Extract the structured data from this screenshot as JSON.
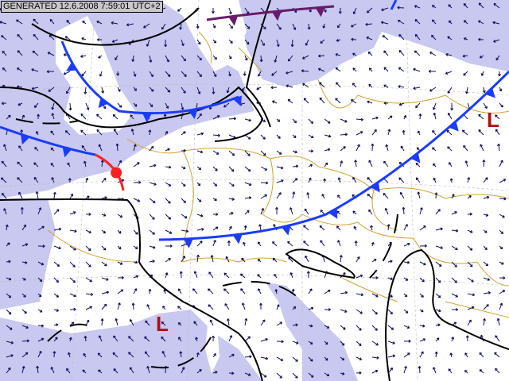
{
  "header": {
    "generated_label": "GENERATED 12.6.2008 7:59:01 UTC+2"
  },
  "pressure_centers": [
    {
      "label": "L",
      "type": "low"
    },
    {
      "label": "L",
      "type": "low"
    }
  ],
  "colors": {
    "sea": "#c8c8f0",
    "land": "#ffffff",
    "borders": "#d4a030",
    "cold_front": "#1a3cff",
    "warm_front": "#ff2020",
    "occluded_front": "#6a1a6a",
    "isobar": "#000000",
    "wind_arrows": "#101060",
    "low_label": "#b01010"
  },
  "layers": [
    "sea",
    "country-borders",
    "wind-arrows",
    "isobars",
    "cold-fronts",
    "warm-front",
    "occluded-front",
    "pressure-centers"
  ]
}
